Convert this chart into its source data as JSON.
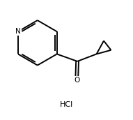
{
  "background_color": "#ffffff",
  "line_color": "#000000",
  "line_width": 1.4,
  "text_color": "#000000",
  "hcl_label": "HCl",
  "nitrogen_label": "N",
  "oxygen_label": "O",
  "figsize": [
    1.91,
    1.72
  ],
  "dpi": 100,
  "xlim": [
    0,
    10
  ],
  "ylim": [
    0,
    9
  ]
}
